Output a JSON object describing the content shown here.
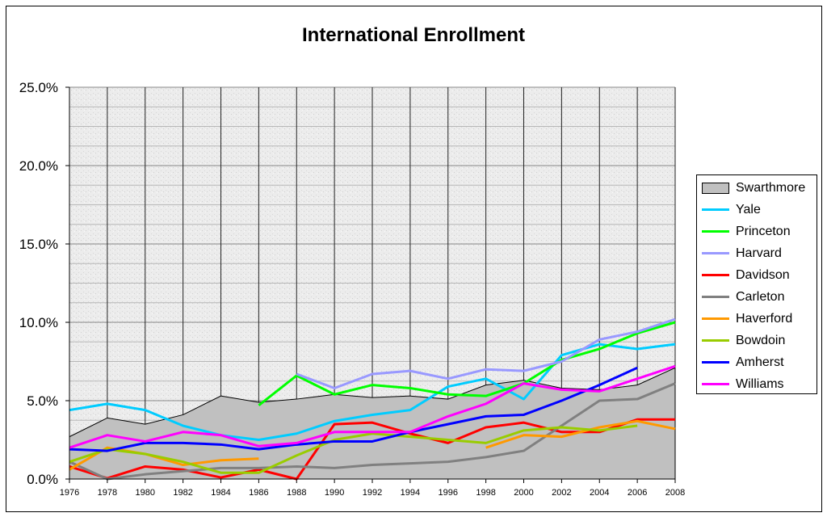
{
  "chart_data": {
    "type": "line",
    "title": "International Enrollment",
    "xlabel": "",
    "ylabel": "",
    "x": [
      1976,
      1978,
      1980,
      1982,
      1984,
      1986,
      1988,
      1990,
      1992,
      1994,
      1996,
      1998,
      2000,
      2002,
      2004,
      2006,
      2008
    ],
    "x_tick_labels": [
      "1976",
      "1978",
      "1980",
      "1982",
      "1984",
      "1986",
      "1988",
      "1990",
      "1992",
      "1994",
      "1996",
      "1998",
      "2000",
      "2002",
      "2004",
      "2006",
      "2008"
    ],
    "ylim": [
      0,
      25
    ],
    "y_ticks": [
      0,
      5,
      10,
      15,
      20,
      25
    ],
    "y_tick_labels": [
      "0.0%",
      "5.0%",
      "10.0%",
      "15.0%",
      "20.0%",
      "25.0%"
    ],
    "grid": true,
    "legend_position": "right",
    "series": [
      {
        "name": "Swarthmore",
        "kind": "area",
        "color": "#c0c0c0",
        "values": [
          2.7,
          3.9,
          3.5,
          4.1,
          5.3,
          4.9,
          5.1,
          5.4,
          5.2,
          5.3,
          5.1,
          6.0,
          6.3,
          5.8,
          5.7,
          6.0,
          7.1
        ]
      },
      {
        "name": "Yale",
        "color": "#00ccff",
        "values": [
          4.4,
          4.8,
          4.4,
          3.4,
          2.8,
          2.5,
          2.9,
          3.7,
          4.1,
          4.4,
          5.9,
          6.4,
          5.1,
          7.9,
          8.6,
          8.3,
          8.6
        ]
      },
      {
        "name": "Princeton",
        "color": "#00ff00",
        "values": [
          null,
          null,
          null,
          null,
          null,
          4.7,
          6.6,
          5.4,
          6.0,
          5.8,
          5.4,
          5.3,
          6.1,
          7.6,
          8.3,
          9.3,
          10.0
        ]
      },
      {
        "name": "Harvard",
        "color": "#9999ff",
        "values": [
          null,
          null,
          null,
          null,
          null,
          null,
          6.7,
          5.8,
          6.7,
          6.9,
          6.4,
          7.0,
          6.9,
          7.5,
          8.9,
          9.4,
          10.2
        ]
      },
      {
        "name": "Davidson",
        "color": "#ff0000",
        "values": [
          0.8,
          0.05,
          0.8,
          0.6,
          0.1,
          0.6,
          0.0,
          3.5,
          3.6,
          2.9,
          2.3,
          3.3,
          3.6,
          3.0,
          3.0,
          3.8,
          3.8
        ]
      },
      {
        "name": "Carleton",
        "color": "#808080",
        "values": [
          1.1,
          0.0,
          0.3,
          0.5,
          0.7,
          0.7,
          0.8,
          0.7,
          0.9,
          1.0,
          1.1,
          1.4,
          1.8,
          3.4,
          5.0,
          5.1,
          6.1
        ]
      },
      {
        "name": "Haverford",
        "color": "#ff9900",
        "values": [
          0.6,
          2.0,
          1.6,
          0.9,
          1.2,
          1.3,
          null,
          null,
          null,
          null,
          null,
          2.0,
          2.8,
          2.7,
          3.3,
          3.7,
          3.2
        ]
      },
      {
        "name": "Bowdoin",
        "color": "#99cc00",
        "values": [
          1.1,
          1.9,
          1.6,
          1.1,
          0.4,
          0.4,
          1.5,
          2.5,
          2.9,
          2.7,
          2.5,
          2.3,
          3.1,
          3.3,
          3.1,
          3.4,
          null
        ]
      },
      {
        "name": "Amherst",
        "color": "#0000ff",
        "values": [
          1.9,
          1.8,
          2.3,
          2.3,
          2.2,
          1.9,
          2.2,
          2.4,
          2.4,
          3.0,
          3.5,
          4.0,
          4.1,
          5.0,
          6.0,
          7.1,
          null
        ]
      },
      {
        "name": "Williams",
        "color": "#ff00ff",
        "values": [
          2.0,
          2.8,
          2.4,
          3.0,
          2.8,
          2.1,
          2.3,
          3.0,
          3.0,
          3.0,
          4.0,
          4.8,
          6.1,
          5.7,
          5.6,
          6.4,
          7.2
        ]
      }
    ]
  }
}
